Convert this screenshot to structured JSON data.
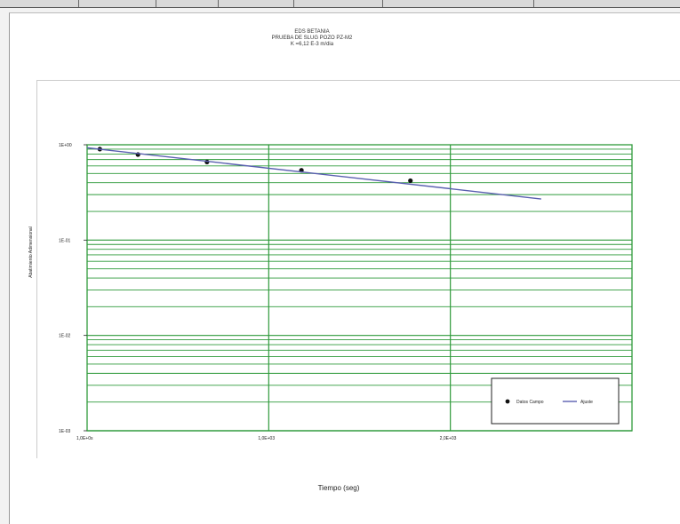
{
  "chart_data": {
    "type": "line",
    "title": "EDS BETANIA",
    "subtitle": "PRUEBA DE SLUG POZO PZ-M2",
    "annotation": "K =6,12 E-3 m/dia",
    "xlabel": "Tiempo (seg)",
    "ylabel": "Abatimiento Adimensional",
    "x_ticks": [
      {
        "value": 0,
        "label": "1,0E+0s"
      },
      {
        "value": 1000,
        "label": "1,0E+03"
      },
      {
        "value": 2000,
        "label": "2,0E+03"
      }
    ],
    "y_ticks": [
      {
        "value": 1,
        "label": "1E+00"
      },
      {
        "value": 0.1,
        "label": "1E-01"
      },
      {
        "value": 0.01,
        "label": "1E-02"
      },
      {
        "value": 0.001,
        "label": "1E-03"
      }
    ],
    "xlim": [
      0,
      3000
    ],
    "ylim": [
      0.001,
      1
    ],
    "y_scale": "log",
    "grid": true,
    "legend_position": "bottom-right",
    "series": [
      {
        "name": "Datos Campo",
        "style": "markers",
        "color": "#111111",
        "x": [
          70,
          280,
          660,
          1180,
          1780
        ],
        "y": [
          0.9,
          0.79,
          0.66,
          0.54,
          0.42
        ]
      },
      {
        "name": "Ajuste",
        "style": "line",
        "color": "#5a5fb0",
        "x": [
          0,
          2500
        ],
        "y": [
          0.93,
          0.27
        ]
      }
    ]
  }
}
